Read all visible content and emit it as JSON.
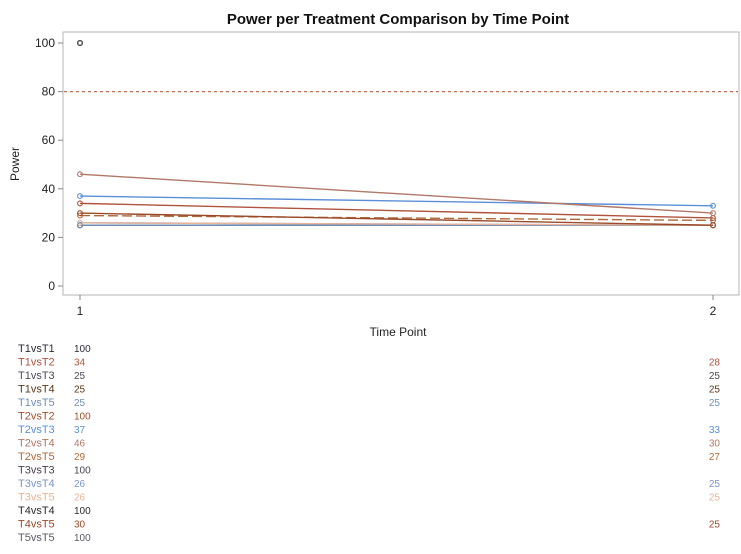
{
  "chart_data": {
    "type": "line",
    "title": "Power per Treatment Comparison by Time Point",
    "xlabel": "Time Point",
    "ylabel": "Power",
    "x": [
      1,
      2
    ],
    "xticks": [
      "1",
      "2"
    ],
    "ylim": [
      0,
      100
    ],
    "yticks": [
      0,
      20,
      40,
      60,
      80,
      100
    ],
    "reference_line": {
      "y": 80,
      "style": "dashed",
      "color": "#c0704f"
    },
    "grid": false,
    "series": [
      {
        "name": "T1vsT1",
        "values": [
          100,
          null
        ],
        "labels": [
          "100",
          ""
        ],
        "color": "#2b2b3a"
      },
      {
        "name": "T1vsT2",
        "values": [
          34,
          28
        ],
        "labels": [
          "34",
          "28"
        ],
        "color": "#b0533d"
      },
      {
        "name": "T1vsT3",
        "values": [
          25,
          25
        ],
        "labels": [
          "25",
          "25"
        ],
        "color": "#4a4a5a"
      },
      {
        "name": "T1vsT4",
        "values": [
          25,
          25
        ],
        "labels": [
          "25",
          "25"
        ],
        "color": "#5a3a1a"
      },
      {
        "name": "T1vsT5",
        "values": [
          25,
          25
        ],
        "labels": [
          "25",
          "25"
        ],
        "color": "#6e8db5"
      },
      {
        "name": "T2vsT2",
        "values": [
          100,
          null
        ],
        "labels": [
          "100",
          ""
        ],
        "color": "#a0502e"
      },
      {
        "name": "T2vsT3",
        "values": [
          37,
          33
        ],
        "labels": [
          "37",
          "33"
        ],
        "color": "#5a8fd8"
      },
      {
        "name": "T2vsT4",
        "values": [
          46,
          30
        ],
        "labels": [
          "46",
          "30"
        ],
        "color": "#b07868"
      },
      {
        "name": "T2vsT5",
        "values": [
          29,
          27
        ],
        "labels": [
          "29",
          "27"
        ],
        "color": "#b06a3a"
      },
      {
        "name": "T3vsT3",
        "values": [
          100,
          null
        ],
        "labels": [
          "100",
          ""
        ],
        "color": "#4a4050"
      },
      {
        "name": "T3vsT4",
        "values": [
          26,
          25
        ],
        "labels": [
          "26",
          "25"
        ],
        "color": "#7b96c8"
      },
      {
        "name": "T3vsT5",
        "values": [
          26,
          25
        ],
        "labels": [
          "26",
          "25"
        ],
        "color": "#e8b49a"
      },
      {
        "name": "T4vsT4",
        "values": [
          100,
          null
        ],
        "labels": [
          "100",
          ""
        ],
        "color": "#2b2b2b"
      },
      {
        "name": "T4vsT5",
        "values": [
          30,
          25
        ],
        "labels": [
          "30",
          "25"
        ],
        "color": "#9a4a28"
      },
      {
        "name": "T5vsT5",
        "values": [
          100,
          null
        ],
        "labels": [
          "100",
          ""
        ],
        "color": "#5a5a6a"
      }
    ]
  }
}
